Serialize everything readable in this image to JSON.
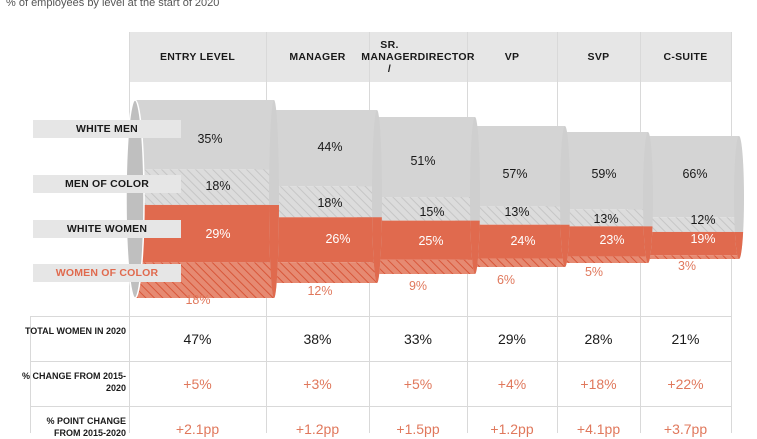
{
  "subtitle": "% of employees by level at the start of 2020",
  "chart_data": {
    "type": "bar",
    "stacked": true,
    "categories": [
      "ENTRY LEVEL",
      "MANAGER",
      "SR. MANAGER / DIRECTOR",
      "VP",
      "SVP",
      "C-SUITE"
    ],
    "series": [
      {
        "name": "WHITE MEN",
        "values": [
          35,
          44,
          51,
          57,
          59,
          66
        ],
        "color": "#d4d4d4"
      },
      {
        "name": "MEN OF COLOR",
        "values": [
          18,
          18,
          15,
          13,
          13,
          12
        ],
        "color": "#d4d4d4"
      },
      {
        "name": "WHITE WOMEN",
        "values": [
          29,
          26,
          25,
          24,
          23,
          19
        ],
        "color": "#e06a4e"
      },
      {
        "name": "WOMEN OF COLOR",
        "values": [
          18,
          12,
          9,
          6,
          5,
          3
        ],
        "color": "#e06a4e"
      }
    ],
    "value_labels": [
      {
        "white_men": "35%",
        "men_of_color": "18%",
        "white_women": "29%",
        "women_of_color": "18%"
      },
      {
        "white_men": "44%",
        "men_of_color": "18%",
        "white_women": "26%",
        "women_of_color": "12%"
      },
      {
        "white_men": "51%",
        "men_of_color": "15%",
        "white_women": "25%",
        "women_of_color": "9%"
      },
      {
        "white_men": "57%",
        "men_of_color": "13%",
        "white_women": "24%",
        "women_of_color": "6%"
      },
      {
        "white_men": "59%",
        "men_of_color": "13%",
        "white_women": "23%",
        "women_of_color": "5%"
      },
      {
        "white_men": "66%",
        "men_of_color": "12%",
        "white_women": "19%",
        "women_of_color": "3%"
      }
    ]
  },
  "table": {
    "rows": [
      {
        "label": "TOTAL WOMEN IN 2020",
        "values": [
          "47%",
          "38%",
          "33%",
          "29%",
          "28%",
          "21%"
        ]
      },
      {
        "label": "% CHANGE FROM 2015-2020",
        "values": [
          "+5%",
          "+3%",
          "+5%",
          "+4%",
          "+18%",
          "+22%"
        ]
      },
      {
        "label": "% POINT CHANGE FROM 2015-2020",
        "values": [
          "+2.1pp",
          "+1.2pp",
          "+1.5pp",
          "+1.2pp",
          "+4.1pp",
          "+3.7pp"
        ]
      }
    ]
  },
  "colors": {
    "gray": "#d4d4d4",
    "coral": "#e06a4e",
    "coral_text": "#e0785c",
    "header_bg": "#e6e6e6"
  }
}
